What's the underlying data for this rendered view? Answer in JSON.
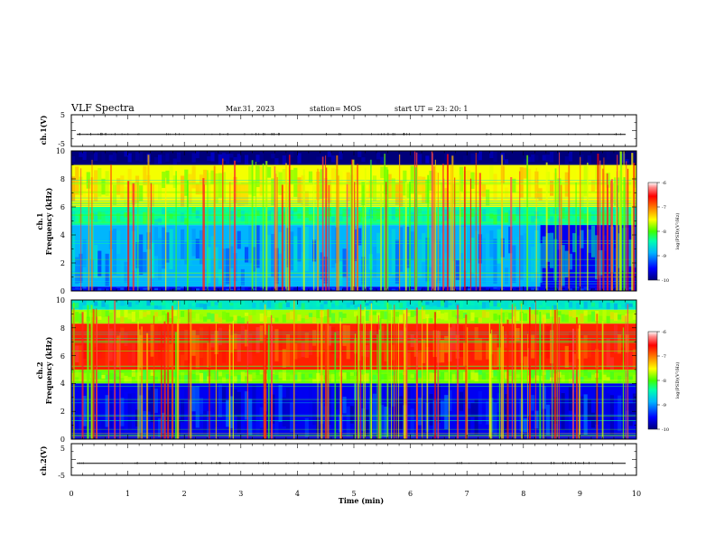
{
  "header": {
    "title": "VLF Spectra",
    "date": "Mar.31, 2023",
    "station": "station= MOS",
    "start_ut": "start  UT =  23: 20: 1"
  },
  "chart_data": [
    {
      "type": "line",
      "id": "ch1-voltage",
      "ylabel": "ch.1(V)",
      "ylim": [
        -5,
        5
      ],
      "ytick_labels": [
        "5",
        "-5"
      ],
      "xlim": [
        0,
        10
      ],
      "description_values": {
        "baseline": -1.2
      }
    },
    {
      "type": "heatmap",
      "id": "ch1-spectrogram",
      "ylabel": "ch.1\nFrequency (kHz)",
      "ylabel_lines": [
        "ch.1",
        "Frequency (kHz)"
      ],
      "ylim": [
        0,
        10
      ],
      "ytick_labels": [
        "0",
        "2",
        "4",
        "6",
        "8",
        "10"
      ],
      "xlim": [
        0,
        10
      ],
      "colorbar": {
        "label": "log(PSD)(V²/Hz)",
        "range": [
          -10,
          -6
        ],
        "tick_labels": [
          "-6",
          "-7",
          "-8",
          "-9",
          "-10"
        ]
      },
      "bands": [
        {
          "f_lo": 9.0,
          "f_hi": 10.0,
          "level": -10.0
        },
        {
          "f_lo": 6.0,
          "f_hi": 9.0,
          "level": -7.8
        },
        {
          "f_lo": 4.7,
          "f_hi": 6.0,
          "level": -8.6
        },
        {
          "f_lo": 0.3,
          "f_hi": 4.7,
          "level": -9.1
        },
        {
          "f_lo": 0.0,
          "f_hi": 0.3,
          "level": -9.6
        }
      ],
      "quiet_after_min": 8.3
    },
    {
      "type": "heatmap",
      "id": "ch2-spectrogram",
      "ylabel": "ch.2\nFrequency (kHz)",
      "ylabel_lines": [
        "ch.2",
        "Frequency (kHz)"
      ],
      "ylim": [
        0,
        10
      ],
      "ytick_labels": [
        "0",
        "2",
        "4",
        "6",
        "8",
        "10"
      ],
      "xlim": [
        0,
        10
      ],
      "colorbar": {
        "label": "log(PSD)(V²/Hz)",
        "range": [
          -10,
          -6
        ],
        "tick_labels": [
          "-6",
          "-7",
          "-8",
          "-9",
          "-10"
        ]
      },
      "bands": [
        {
          "f_lo": 9.3,
          "f_hi": 10.0,
          "level": -8.8
        },
        {
          "f_lo": 8.3,
          "f_hi": 9.3,
          "level": -8.0
        },
        {
          "f_lo": 5.0,
          "f_hi": 8.3,
          "level": -7.0
        },
        {
          "f_lo": 4.0,
          "f_hi": 5.0,
          "level": -8.1
        },
        {
          "f_lo": 0.0,
          "f_hi": 4.0,
          "level": -9.6
        }
      ]
    },
    {
      "type": "line",
      "id": "ch2-voltage",
      "ylabel": "ch.2(V)",
      "ylim": [
        -5,
        5
      ],
      "ytick_labels": [
        "5",
        "-5"
      ],
      "xlim": [
        0,
        10
      ],
      "xlabel": "Time  (min)",
      "xtick_labels": [
        "0",
        "1",
        "2",
        "3",
        "4",
        "5",
        "6",
        "7",
        "8",
        "9",
        "10"
      ],
      "description_values": {
        "baseline": -1.2
      }
    }
  ],
  "colors": {
    "colormap": [
      "#00007a",
      "#0000ff",
      "#00b4ff",
      "#00ffb0",
      "#40ff00",
      "#ffff00",
      "#ff8000",
      "#ff0000",
      "#ff6a6a",
      "#ffffff"
    ]
  }
}
